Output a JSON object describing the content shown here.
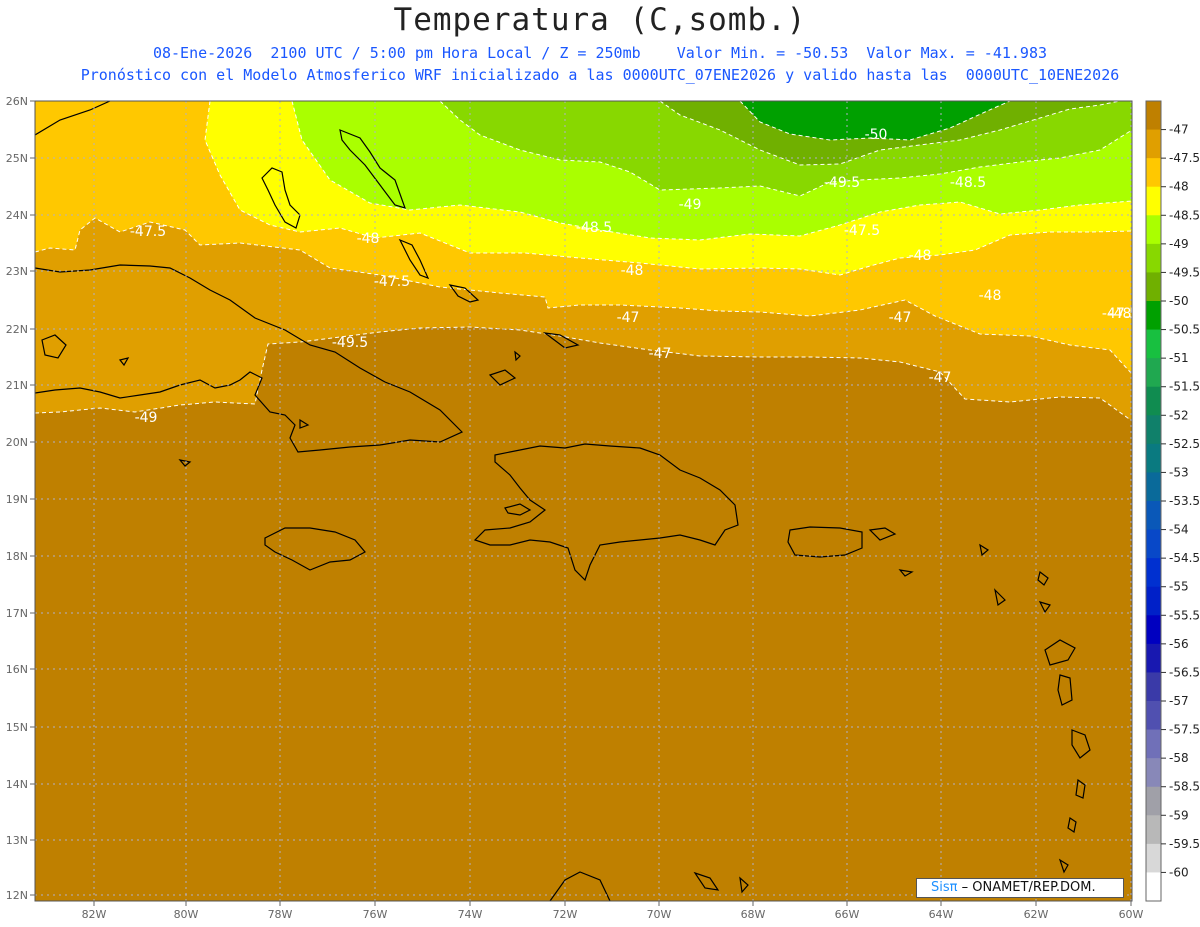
{
  "header": {
    "title": "Temperatura (C,somb.)",
    "subtitle_line1": "08-Ene-2026  2100 UTC / 5:00 pm Hora Local / Z = 250mb    Valor Min. = -50.53  Valor Max. = -41.983",
    "subtitle_line2": "Pronóstico con el Modelo Atmosferico WRF inicializado a las 0000UTC_07ENE2026 y valido hasta las  0000UTC_10ENE2026"
  },
  "map": {
    "lat_labels": [
      "26N",
      "25N",
      "24N",
      "23N",
      "22N",
      "21N",
      "20N",
      "19N",
      "18N",
      "17N",
      "16N",
      "15N",
      "14N",
      "13N",
      "12N"
    ],
    "lon_labels": [
      "82W",
      "80W",
      "78W",
      "76W",
      "74W",
      "72W",
      "70W",
      "68W",
      "66W",
      "64W",
      "62W",
      "60W"
    ],
    "contour_labels": [
      "-47.5",
      "-48",
      "-48.5",
      "-49",
      "-49.5",
      "-50",
      "-47.5",
      "-48",
      "-47.5",
      "-48",
      "-48.5",
      "-49",
      "-49.5",
      "-47",
      "-47",
      "-47",
      "-47",
      "-47.5",
      "-48",
      "-48"
    ],
    "background_color": "#bf8000"
  },
  "legend": {
    "labels": [
      "-47",
      "-47.5",
      "-48",
      "-48.5",
      "-49",
      "-49.5",
      "-50",
      "-50.5",
      "-51",
      "-51.5",
      "-52",
      "-52.5",
      "-53",
      "-53.5",
      "-54",
      "-54.5",
      "-55",
      "-55.5",
      "-56",
      "-56.5",
      "-57",
      "-57.5",
      "-58",
      "-58.5",
      "-59",
      "-59.5",
      "-60"
    ],
    "colors": [
      "#bf8000",
      "#e09f00",
      "#ffc800",
      "#ffff00",
      "#aaff00",
      "#88d800",
      "#70b000",
      "#00a000",
      "#18c040",
      "#20a850",
      "#108c50",
      "#10806a",
      "#0a7a80",
      "#0a6a9a",
      "#0a58b8",
      "#0848c8",
      "#0030d0",
      "#0020c8",
      "#0000c0",
      "#1818b0",
      "#3a3aa8",
      "#5050b0",
      "#7070b8",
      "#8888b8",
      "#a0a0a8",
      "#b8b8b8",
      "#d8d8d8",
      "#ffffff"
    ]
  },
  "credit": {
    "logo": "Sisπ",
    "separator": " – ",
    "org": "ONAMET/REP.DOM."
  }
}
